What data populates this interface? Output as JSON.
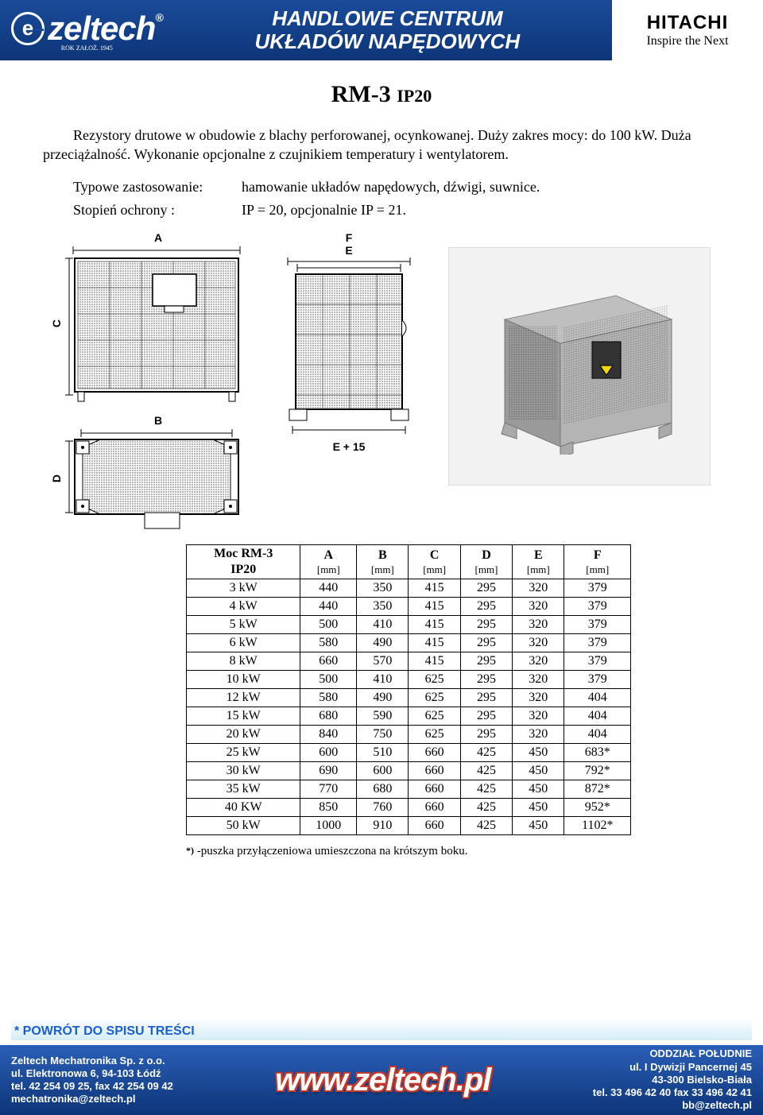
{
  "header": {
    "logo_letter": "e",
    "logo_text": "zeltech",
    "logo_reg": "®",
    "logo_founded": "ROK ZAŁOŻ. 1945",
    "center_line1": "HANDLOWE CENTRUM",
    "center_line2": "UKŁADÓW NAPĘDOWYCH",
    "hitachi_brand": "HITACHI",
    "hitachi_slogan": "Inspire the Next"
  },
  "title": {
    "main": "RM-3",
    "sub": "IP20"
  },
  "intro": "Rezystory drutowe w obudowie z blachy perforowanej, ocynkowanej. Duży zakres mocy: do 100 kW. Duża przeciążalność. Wykonanie opcjonalne z czujnikiem temperatury i wentylatorem.",
  "specs": [
    {
      "label": "Typowe zastosowanie:",
      "value": "hamowanie układów napędowych, dźwigi, suwnice."
    },
    {
      "label": "Stopień ochrony :",
      "value": "IP = 20, opcjonalnie IP = 21."
    }
  ],
  "dim_labels": {
    "A": "A",
    "B": "B",
    "C": "C",
    "D": "D",
    "E": "E",
    "F": "F",
    "E15": "E + 15"
  },
  "table": {
    "headers": [
      {
        "t": "Moc RM-3",
        "u": "IP20"
      },
      {
        "t": "A",
        "u": "[mm]"
      },
      {
        "t": "B",
        "u": "[mm]"
      },
      {
        "t": "C",
        "u": "[mm]"
      },
      {
        "t": "D",
        "u": "[mm]"
      },
      {
        "t": "E",
        "u": "[mm]"
      },
      {
        "t": "F",
        "u": "[mm]"
      }
    ],
    "rows": [
      [
        "3 kW",
        "440",
        "350",
        "415",
        "295",
        "320",
        "379"
      ],
      [
        "4 kW",
        "440",
        "350",
        "415",
        "295",
        "320",
        "379"
      ],
      [
        "5 kW",
        "500",
        "410",
        "415",
        "295",
        "320",
        "379"
      ],
      [
        "6 kW",
        "580",
        "490",
        "415",
        "295",
        "320",
        "379"
      ],
      [
        "8 kW",
        "660",
        "570",
        "415",
        "295",
        "320",
        "379"
      ],
      [
        "10 kW",
        "500",
        "410",
        "625",
        "295",
        "320",
        "379"
      ],
      [
        "12 kW",
        "580",
        "490",
        "625",
        "295",
        "320",
        "404"
      ],
      [
        "15 kW",
        "680",
        "590",
        "625",
        "295",
        "320",
        "404"
      ],
      [
        "20 kW",
        "840",
        "750",
        "625",
        "295",
        "320",
        "404"
      ],
      [
        "25 kW",
        "600",
        "510",
        "660",
        "425",
        "450",
        "683*"
      ],
      [
        "30 kW",
        "690",
        "600",
        "660",
        "425",
        "450",
        "792*"
      ],
      [
        "35 kW",
        "770",
        "680",
        "660",
        "425",
        "450",
        "872*"
      ],
      [
        "40 KW",
        "850",
        "760",
        "660",
        "425",
        "450",
        "952*"
      ],
      [
        "50 kW",
        "1000",
        "910",
        "660",
        "425",
        "450",
        "1102*"
      ]
    ]
  },
  "footnote": "-puszka przyłączeniowa umieszczona na krótszym boku.",
  "footnote_mark": "*)",
  "return_link": "* POWRÓT DO SPISU TREŚCI",
  "footer": {
    "left": [
      "Zeltech Mechatronika Sp. z o.o.",
      "ul. Elektronowa 6, 94-103 Łódź",
      "tel. 42 254 09 25, fax 42 254 09 42",
      "mechatronika@zeltech.pl"
    ],
    "www": "www.zeltech.pl",
    "right": [
      "ODDZIAŁ POŁUDNIE",
      "ul. I Dywizji Pancernej 45",
      "43-300 Bielsko-Biała",
      "tel. 33 496 42 40 fax 33 496 42 41",
      "bb@zeltech.pl"
    ]
  },
  "colors": {
    "header_grad_top": "#1a4b9a",
    "header_grad_bot": "#0d3578",
    "link_blue": "#1a5fd0",
    "www_outline": "#c0392b"
  }
}
